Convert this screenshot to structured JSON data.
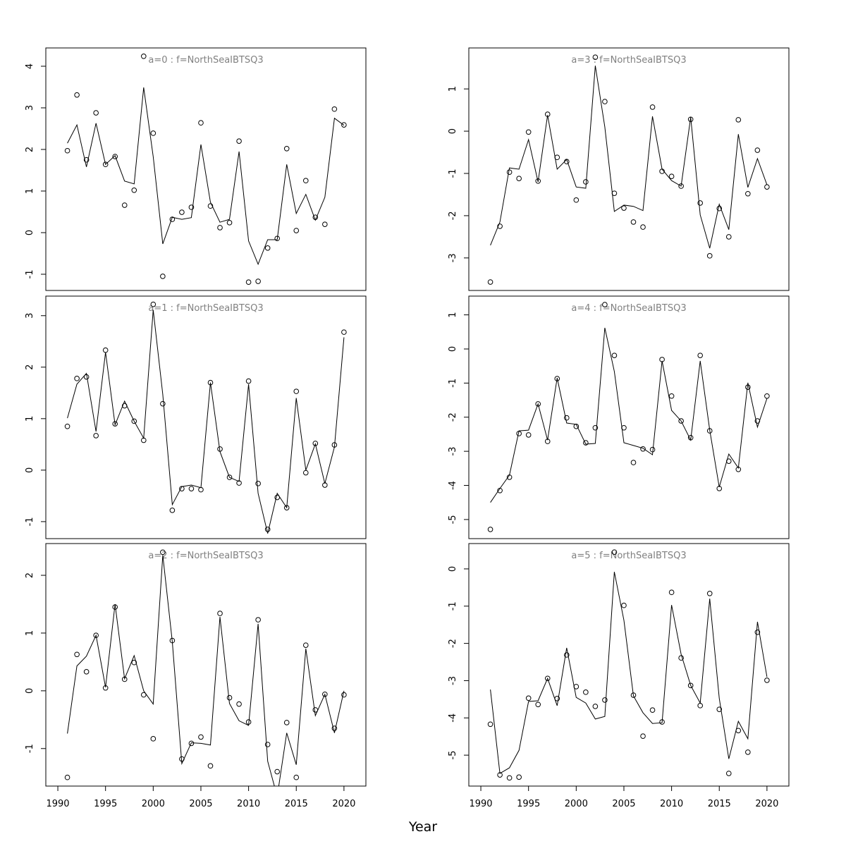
{
  "chart_data": {
    "type": "line",
    "xlabel": "Year",
    "xlim": [
      1988.74,
      2022.3
    ],
    "x_ticks": [
      1990,
      1995,
      2000,
      2005,
      2010,
      2015,
      2020
    ],
    "years": [
      1991,
      1992,
      1993,
      1994,
      1995,
      1996,
      1997,
      1998,
      1999,
      2000,
      2001,
      2002,
      2003,
      2004,
      2005,
      2006,
      2007,
      2008,
      2009,
      2010,
      2011,
      2012,
      2013,
      2014,
      2015,
      2016,
      2017,
      2018,
      2019,
      2020
    ],
    "panels": [
      {
        "title": "a=0  :  f=NorthSeaIBTSQ3",
        "ylim": [
          -1.39,
          4.44
        ],
        "y_ticks": [
          -1,
          0,
          1,
          2,
          3,
          4
        ],
        "observed": [
          1.97,
          3.31,
          1.75,
          2.88,
          1.64,
          1.83,
          0.66,
          1.02,
          4.24,
          2.39,
          -1.05,
          0.32,
          0.49,
          0.61,
          2.64,
          0.64,
          0.12,
          0.24,
          2.2,
          -1.19,
          -1.17,
          -0.37,
          -0.14,
          2.02,
          0.05,
          1.25,
          0.37,
          0.2,
          2.97,
          2.59
        ],
        "fitted": [
          2.15,
          2.59,
          1.58,
          2.63,
          1.64,
          1.85,
          1.24,
          1.17,
          3.49,
          1.83,
          -0.27,
          0.37,
          0.32,
          0.36,
          2.12,
          0.73,
          0.25,
          0.32,
          1.95,
          -0.2,
          -0.76,
          -0.17,
          -0.17,
          1.64,
          0.46,
          0.92,
          0.3,
          0.85,
          2.75,
          2.58
        ]
      },
      {
        "title": "a=1  :  f=NorthSeaIBTSQ3",
        "ylim": [
          -1.33,
          3.38
        ],
        "y_ticks": [
          -1,
          0,
          1,
          2,
          3
        ],
        "observed": [
          0.85,
          1.78,
          1.81,
          0.67,
          2.33,
          0.9,
          1.25,
          0.95,
          0.58,
          3.22,
          1.29,
          -0.78,
          -0.36,
          -0.36,
          -0.38,
          1.7,
          0.41,
          -0.14,
          -0.25,
          1.73,
          -0.26,
          -1.15,
          -0.53,
          -0.73,
          1.53,
          -0.05,
          0.52,
          -0.29,
          0.49,
          2.68
        ],
        "fitted": [
          1.01,
          1.67,
          1.88,
          0.75,
          2.29,
          0.88,
          1.34,
          0.95,
          0.62,
          3.11,
          1.47,
          -0.67,
          -0.32,
          -0.29,
          -0.34,
          1.7,
          0.36,
          -0.14,
          -0.22,
          1.67,
          -0.45,
          -1.23,
          -0.45,
          -0.73,
          1.4,
          0.0,
          0.51,
          -0.26,
          0.45,
          2.58
        ]
      },
      {
        "title": "a=2  :  f=NorthSeaIBTSQ3",
        "ylim": [
          -1.65,
          2.55
        ],
        "y_ticks": [
          -1,
          0,
          1,
          2
        ],
        "observed": [
          -1.5,
          0.63,
          0.33,
          0.96,
          0.05,
          1.45,
          0.2,
          0.49,
          -0.07,
          -0.83,
          2.4,
          0.87,
          -1.18,
          -0.91,
          -0.8,
          -1.3,
          1.34,
          -0.12,
          -0.23,
          -0.54,
          1.23,
          -0.93,
          -1.4,
          -0.55,
          -1.5,
          0.79,
          -0.33,
          -0.06,
          -0.65,
          -0.07
        ],
        "fitted": [
          -0.74,
          0.43,
          0.6,
          0.96,
          0.06,
          1.5,
          0.21,
          0.61,
          0.0,
          -0.23,
          2.35,
          0.85,
          -1.26,
          -0.9,
          -0.91,
          -0.94,
          1.28,
          -0.22,
          -0.52,
          -0.6,
          1.16,
          -1.22,
          -1.83,
          -0.73,
          -1.28,
          0.73,
          -0.43,
          -0.06,
          -0.73,
          0.0
        ]
      },
      {
        "title": "a=3  :  f=NorthSeaIBTSQ3",
        "ylim": [
          -3.77,
          1.97
        ],
        "y_ticks": [
          -3,
          -2,
          -1,
          0,
          1
        ],
        "observed": [
          -3.57,
          -2.25,
          -0.97,
          -1.12,
          -0.02,
          -1.18,
          0.4,
          -0.62,
          -0.72,
          -1.63,
          -1.2,
          1.75,
          0.7,
          -1.47,
          -1.82,
          -2.15,
          -2.27,
          0.57,
          -0.95,
          -1.07,
          -1.3,
          0.28,
          -1.7,
          -2.95,
          -1.83,
          -2.5,
          0.27,
          -1.48,
          -0.45,
          -1.32
        ],
        "fitted": [
          -2.7,
          -2.15,
          -0.87,
          -0.9,
          -0.2,
          -1.2,
          0.38,
          -0.9,
          -0.67,
          -1.32,
          -1.35,
          1.55,
          0.1,
          -1.9,
          -1.75,
          -1.78,
          -1.88,
          0.35,
          -0.9,
          -1.17,
          -1.3,
          0.33,
          -1.98,
          -2.77,
          -1.73,
          -2.33,
          -0.07,
          -1.33,
          -0.65,
          -1.27
        ]
      },
      {
        "title": "a=4  :  f=NorthSeaIBTSQ3",
        "ylim": [
          -5.56,
          1.55
        ],
        "y_ticks": [
          -5,
          -4,
          -3,
          -2,
          -1,
          0,
          1
        ],
        "observed": [
          -5.29,
          -4.15,
          -3.76,
          -2.48,
          -2.52,
          -1.61,
          -2.71,
          -0.87,
          -2.02,
          -2.27,
          -2.75,
          -2.31,
          1.3,
          -0.19,
          -2.31,
          -3.33,
          -2.93,
          -2.95,
          -0.31,
          -1.38,
          -2.11,
          -2.6,
          -0.19,
          -2.4,
          -4.09,
          -3.29,
          -3.53,
          -1.12,
          -2.11,
          -1.38
        ],
        "fitted": [
          -4.5,
          -4.09,
          -3.7,
          -2.4,
          -2.38,
          -1.61,
          -2.67,
          -0.85,
          -2.17,
          -2.21,
          -2.79,
          -2.77,
          0.62,
          -0.66,
          -2.75,
          -2.83,
          -2.91,
          -3.1,
          -0.35,
          -1.8,
          -2.11,
          -2.67,
          -0.35,
          -2.38,
          -4.05,
          -3.08,
          -3.49,
          -0.99,
          -2.29,
          -1.45
        ]
      },
      {
        "title": "a=5  :  f=NorthSeaIBTSQ3",
        "ylim": [
          -5.83,
          0.68
        ],
        "y_ticks": [
          -5,
          -4,
          -3,
          -2,
          -1,
          0
        ],
        "observed": [
          -4.17,
          -5.53,
          -5.61,
          -5.59,
          -3.47,
          -3.64,
          -2.94,
          -3.48,
          -2.31,
          -3.16,
          -3.31,
          -3.69,
          -3.52,
          0.45,
          -0.98,
          -3.39,
          -4.49,
          -3.79,
          -4.11,
          -0.63,
          -2.39,
          -3.13,
          -3.67,
          -0.66,
          -3.77,
          -5.49,
          -4.34,
          -4.92,
          -1.7,
          -2.99
        ],
        "fitted": [
          -3.24,
          -5.49,
          -5.34,
          -4.87,
          -3.56,
          -3.54,
          -2.94,
          -3.67,
          -2.12,
          -3.45,
          -3.6,
          -4.03,
          -3.96,
          -0.08,
          -1.38,
          -3.41,
          -3.86,
          -4.15,
          -4.13,
          -0.97,
          -2.29,
          -3.13,
          -3.6,
          -0.8,
          -3.47,
          -5.1,
          -4.09,
          -4.56,
          -1.42,
          -2.9
        ]
      }
    ],
    "colors": {
      "line": "#000000",
      "points": "#000000",
      "title": "#808080"
    }
  }
}
